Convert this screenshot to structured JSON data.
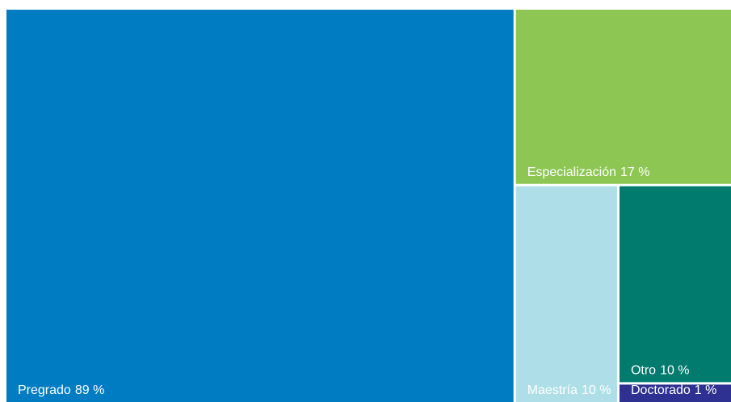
{
  "chart_data": {
    "type": "treemap",
    "categories": [
      "Pregrado",
      "Especialización",
      "Maestría",
      "Otro",
      "Doctorado"
    ],
    "values": [
      89,
      17,
      10,
      10,
      1
    ],
    "value_labels": [
      "89 %",
      "17 %",
      "10 %",
      "10 %",
      "1 %"
    ],
    "colors": [
      "#007cc3",
      "#8dc652",
      "#aedfe8",
      "#007b6e",
      "#2e3192"
    ]
  }
}
